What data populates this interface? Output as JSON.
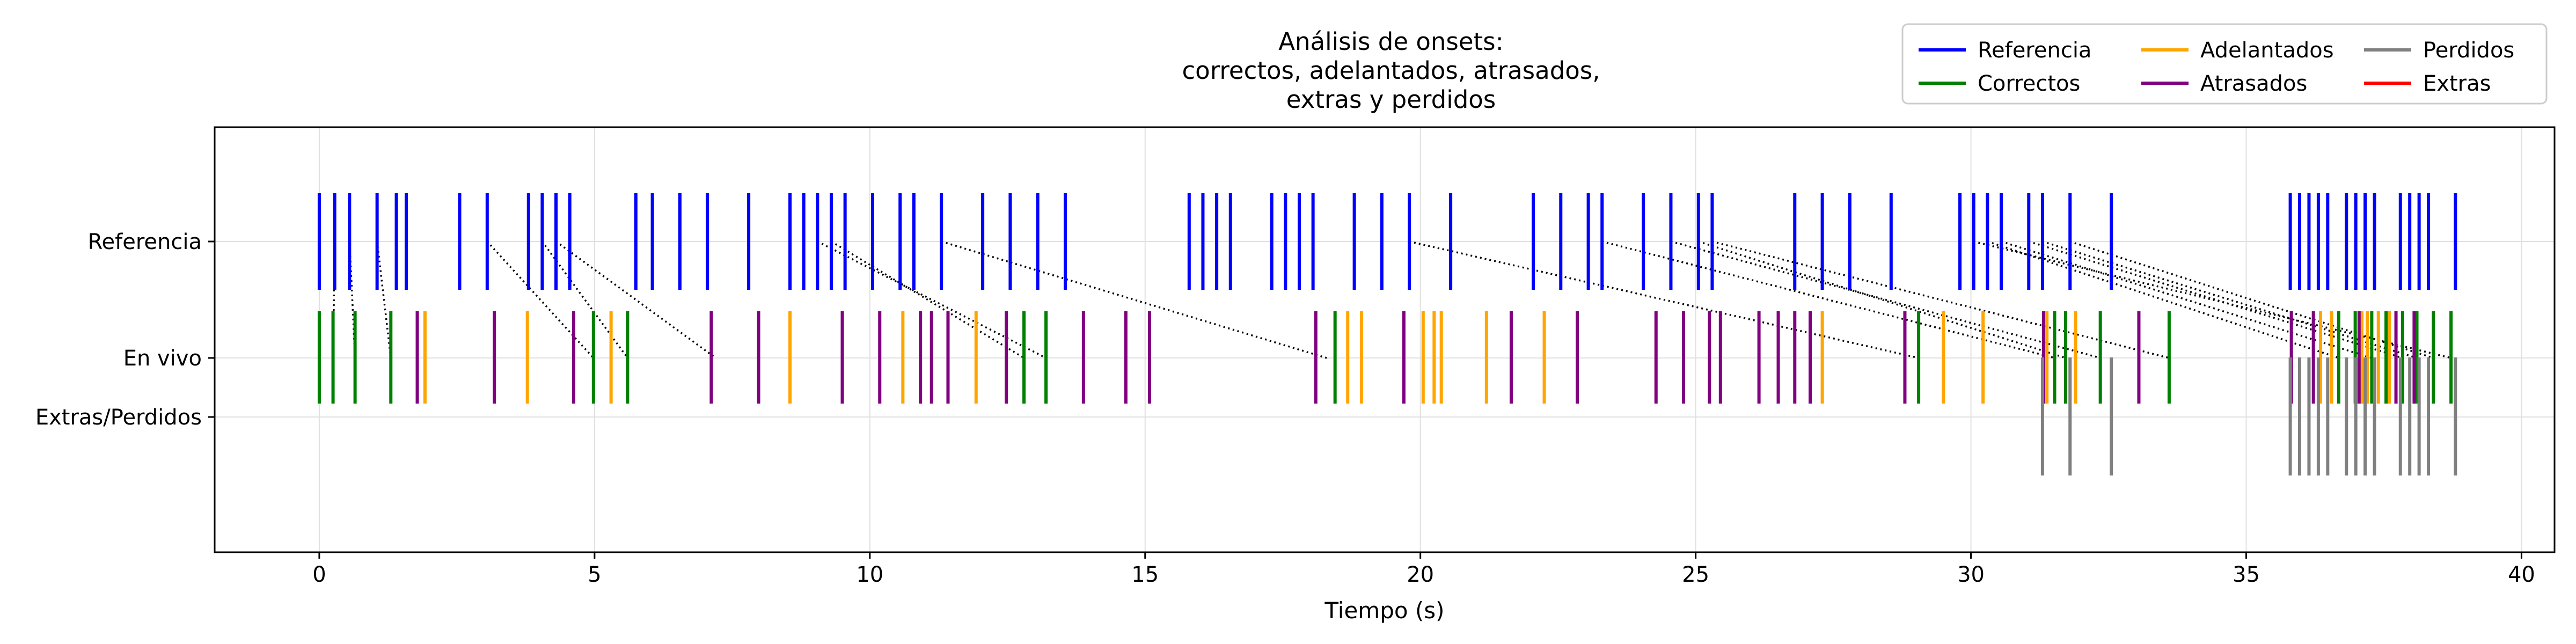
{
  "chart_data": {
    "type": "event-plot",
    "title_lines": [
      "Análisis de onsets:",
      "correctos, adelantados, atrasados,",
      "extras y perdidos"
    ],
    "xlabel": "Tiempo (s)",
    "ylabel": "",
    "xlim": [
      -1.9,
      40.6
    ],
    "xticks": [
      0,
      5,
      10,
      15,
      20,
      25,
      30,
      35,
      40
    ],
    "grid": true,
    "legend_position": "top-right",
    "rows": [
      "Referencia",
      "En vivo",
      "Extras/Perdidos"
    ],
    "legend": [
      {
        "label": "Referencia",
        "color": "#0000ff"
      },
      {
        "label": "Correctos",
        "color": "#008000"
      },
      {
        "label": "Adelantados",
        "color": "#ffa500"
      },
      {
        "label": "Atrasados",
        "color": "#800080"
      },
      {
        "label": "Perdidos",
        "color": "#808080"
      },
      {
        "label": "Extras",
        "color": "#ff0000"
      }
    ],
    "series": {
      "referencia": [
        0.0,
        0.28,
        0.55,
        1.05,
        1.4,
        1.58,
        2.55,
        3.05,
        3.8,
        4.05,
        4.3,
        4.55,
        5.75,
        6.05,
        6.55,
        7.05,
        7.8,
        8.55,
        8.8,
        9.05,
        9.3,
        9.55,
        10.05,
        10.55,
        10.8,
        11.3,
        12.05,
        12.55,
        13.05,
        13.55,
        15.8,
        16.05,
        16.3,
        16.55,
        17.3,
        17.55,
        17.8,
        18.05,
        18.8,
        19.3,
        19.8,
        20.55,
        22.05,
        22.55,
        23.05,
        23.3,
        24.05,
        24.55,
        25.05,
        25.3,
        26.8,
        27.3,
        27.8,
        28.55,
        29.8,
        30.05,
        30.3,
        30.55,
        31.05,
        31.3,
        31.8,
        32.55,
        35.8,
        35.97,
        36.14,
        36.31,
        36.48,
        36.82,
        36.99,
        37.16,
        37.33,
        37.8,
        37.97,
        38.14,
        38.31,
        38.8
      ],
      "correctos": [
        0.0,
        0.25,
        0.65,
        1.3,
        4.98,
        5.6,
        12.8,
        13.2,
        18.45,
        29.05,
        31.52,
        31.72,
        32.35,
        33.6,
        36.68,
        36.98,
        37.28,
        37.54,
        37.84,
        38.1,
        38.4,
        38.72
      ],
      "adelantados": [
        1.92,
        3.78,
        5.3,
        8.55,
        10.6,
        11.93,
        18.68,
        18.93,
        20.05,
        20.25,
        20.38,
        21.2,
        22.25,
        27.3,
        29.5,
        30.22,
        31.38,
        31.9,
        36.35,
        36.55,
        37.1,
        37.2,
        37.4,
        37.6
      ],
      "atrasados": [
        1.78,
        3.18,
        4.62,
        7.12,
        7.98,
        9.5,
        10.18,
        10.92,
        11.12,
        11.42,
        12.48,
        13.88,
        14.65,
        15.08,
        18.1,
        19.7,
        21.65,
        22.85,
        24.28,
        24.78,
        25.25,
        25.45,
        26.15,
        26.5,
        26.8,
        27.08,
        28.8,
        31.32,
        33.05,
        35.82,
        36.22,
        37.05,
        37.72,
        38.05
      ],
      "perdidos": [
        31.3,
        31.8,
        32.55,
        35.8,
        35.97,
        36.14,
        36.31,
        36.48,
        36.82,
        36.99,
        37.16,
        37.33,
        37.8,
        37.97,
        38.14,
        38.31,
        38.8
      ],
      "extras": [],
      "links": [
        [
          0.28,
          0.25
        ],
        [
          0.55,
          0.65
        ],
        [
          1.05,
          1.3
        ],
        [
          3.05,
          4.98
        ],
        [
          4.05,
          5.6
        ],
        [
          4.3,
          7.2
        ],
        [
          9.05,
          13.2
        ],
        [
          9.3,
          12.8
        ],
        [
          11.3,
          18.3
        ],
        [
          19.8,
          29.05
        ],
        [
          23.3,
          31.52
        ],
        [
          24.55,
          32.35
        ],
        [
          25.05,
          31.72
        ],
        [
          25.3,
          33.6
        ],
        [
          30.3,
          36.68
        ],
        [
          30.55,
          37.28
        ],
        [
          31.05,
          37.84
        ],
        [
          31.3,
          38.1
        ],
        [
          31.8,
          38.4
        ],
        [
          30.05,
          38.72
        ]
      ]
    }
  }
}
